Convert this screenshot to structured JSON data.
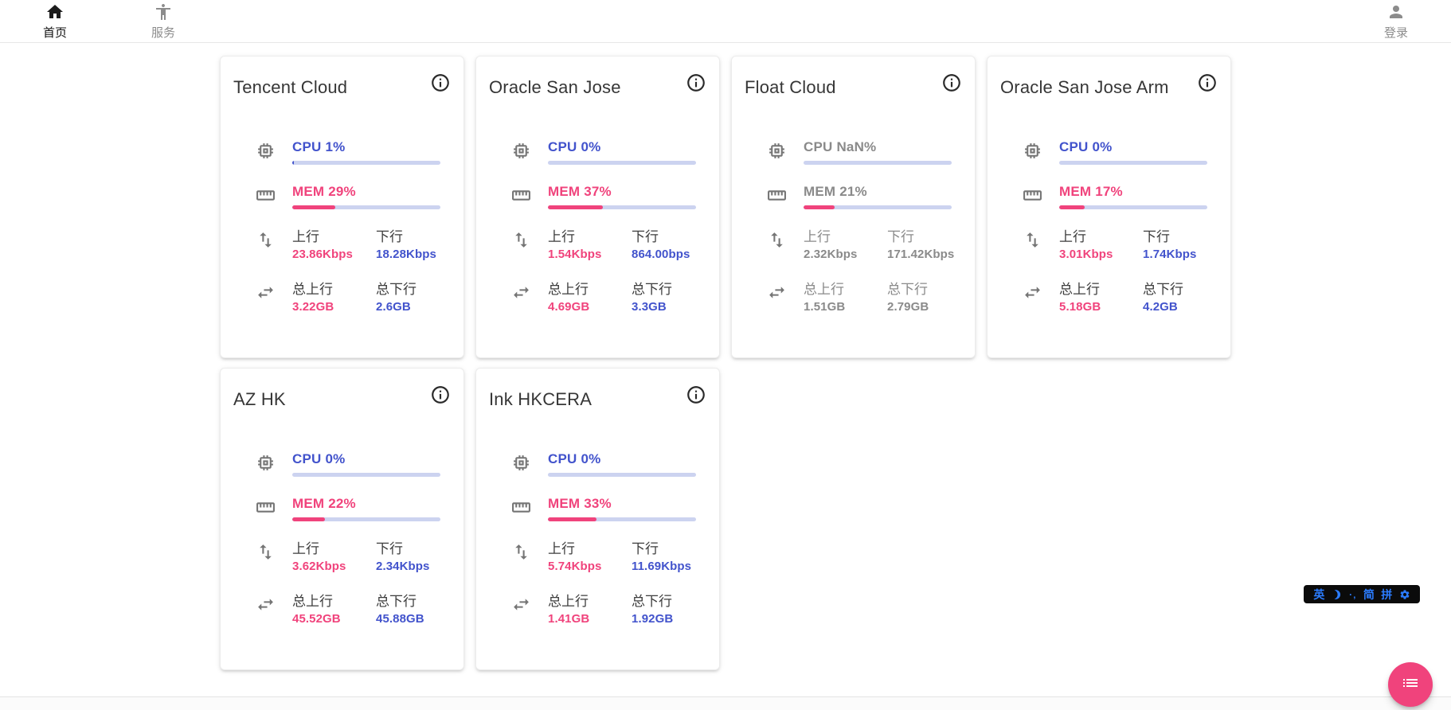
{
  "nav": {
    "items": [
      {
        "label": "首页",
        "icon": "home-icon",
        "active": true
      },
      {
        "label": "服务",
        "icon": "accessibility-icon",
        "active": false
      }
    ],
    "login": {
      "label": "登录",
      "icon": "person-icon"
    }
  },
  "labels": {
    "cpu": "CPU",
    "mem": "MEM",
    "upload": "上行",
    "download": "下行",
    "total_upload": "总上行",
    "total_download": "总下行"
  },
  "servers": [
    {
      "name": "Tencent Cloud",
      "cpu": "1%",
      "cpu_pct": 1,
      "mem": "29%",
      "mem_pct": 29,
      "up": "23.86Kbps",
      "down": "18.28Kbps",
      "total_up": "3.22GB",
      "total_down": "2.6GB",
      "offline": false
    },
    {
      "name": "Oracle San Jose",
      "cpu": "0%",
      "cpu_pct": 0,
      "mem": "37%",
      "mem_pct": 37,
      "up": "1.54Kbps",
      "down": "864.00bps",
      "total_up": "4.69GB",
      "total_down": "3.3GB",
      "offline": false
    },
    {
      "name": "Float Cloud",
      "cpu": "NaN%",
      "cpu_pct": 0,
      "mem": "21%",
      "mem_pct": 21,
      "up": "2.32Kbps",
      "down": "171.42Kbps",
      "total_up": "1.51GB",
      "total_down": "2.79GB",
      "offline": true
    },
    {
      "name": "Oracle San Jose Arm",
      "cpu": "0%",
      "cpu_pct": 0,
      "mem": "17%",
      "mem_pct": 17,
      "up": "3.01Kbps",
      "down": "1.74Kbps",
      "total_up": "5.18GB",
      "total_down": "4.2GB",
      "offline": false
    },
    {
      "name": "AZ HK",
      "cpu": "0%",
      "cpu_pct": 0,
      "mem": "22%",
      "mem_pct": 22,
      "up": "3.62Kbps",
      "down": "2.34Kbps",
      "total_up": "45.52GB",
      "total_down": "45.88GB",
      "offline": false
    },
    {
      "name": "Ink HKCERA",
      "cpu": "0%",
      "cpu_pct": 0,
      "mem": "33%",
      "mem_pct": 33,
      "up": "5.74Kbps",
      "down": "11.69Kbps",
      "total_up": "1.41GB",
      "total_down": "1.92GB",
      "offline": false
    }
  ],
  "ime": {
    "lang": "英",
    "dots": "·‚",
    "simplified": "简",
    "pinyin": "拼"
  },
  "colors": {
    "blue": "#4253cc",
    "pink": "#f0437c",
    "track": "#ccd3f0",
    "offline_gray": "#8a8a8a",
    "ime_blue": "#2b7cff",
    "ime_bg": "#0b0b0b"
  }
}
